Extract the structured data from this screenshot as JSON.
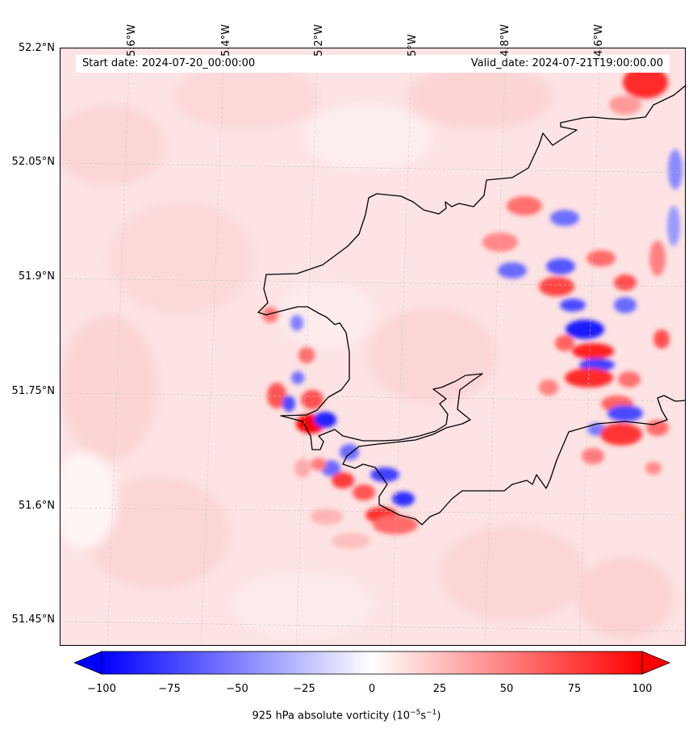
{
  "map": {
    "start_date": "Start date: 2024-07-20_00:00:00",
    "valid_date": "Valid_date: 2024-07-21T19:00:00.00",
    "lon_labels": [
      "5.6°W",
      "5.4°W",
      "5.2°W",
      "5°W",
      "4.8°W",
      "4.6°W"
    ],
    "lat_labels": [
      "52.2°N",
      "52.05°N",
      "51.9°N",
      "51.75°N",
      "51.6°N",
      "51.45°N"
    ]
  },
  "colorbar": {
    "ticks": [
      "−100",
      "−75",
      "−50",
      "−25",
      "0",
      "25",
      "50",
      "75",
      "100"
    ],
    "label_main": "925 hPa absolute vorticity (10",
    "label_exp1": "−5",
    "label_mid": "s",
    "label_exp2": "−1",
    "label_end": ")",
    "min_color": "#0000ff",
    "mid_color": "#ffffff",
    "max_color": "#ff0000"
  }
}
